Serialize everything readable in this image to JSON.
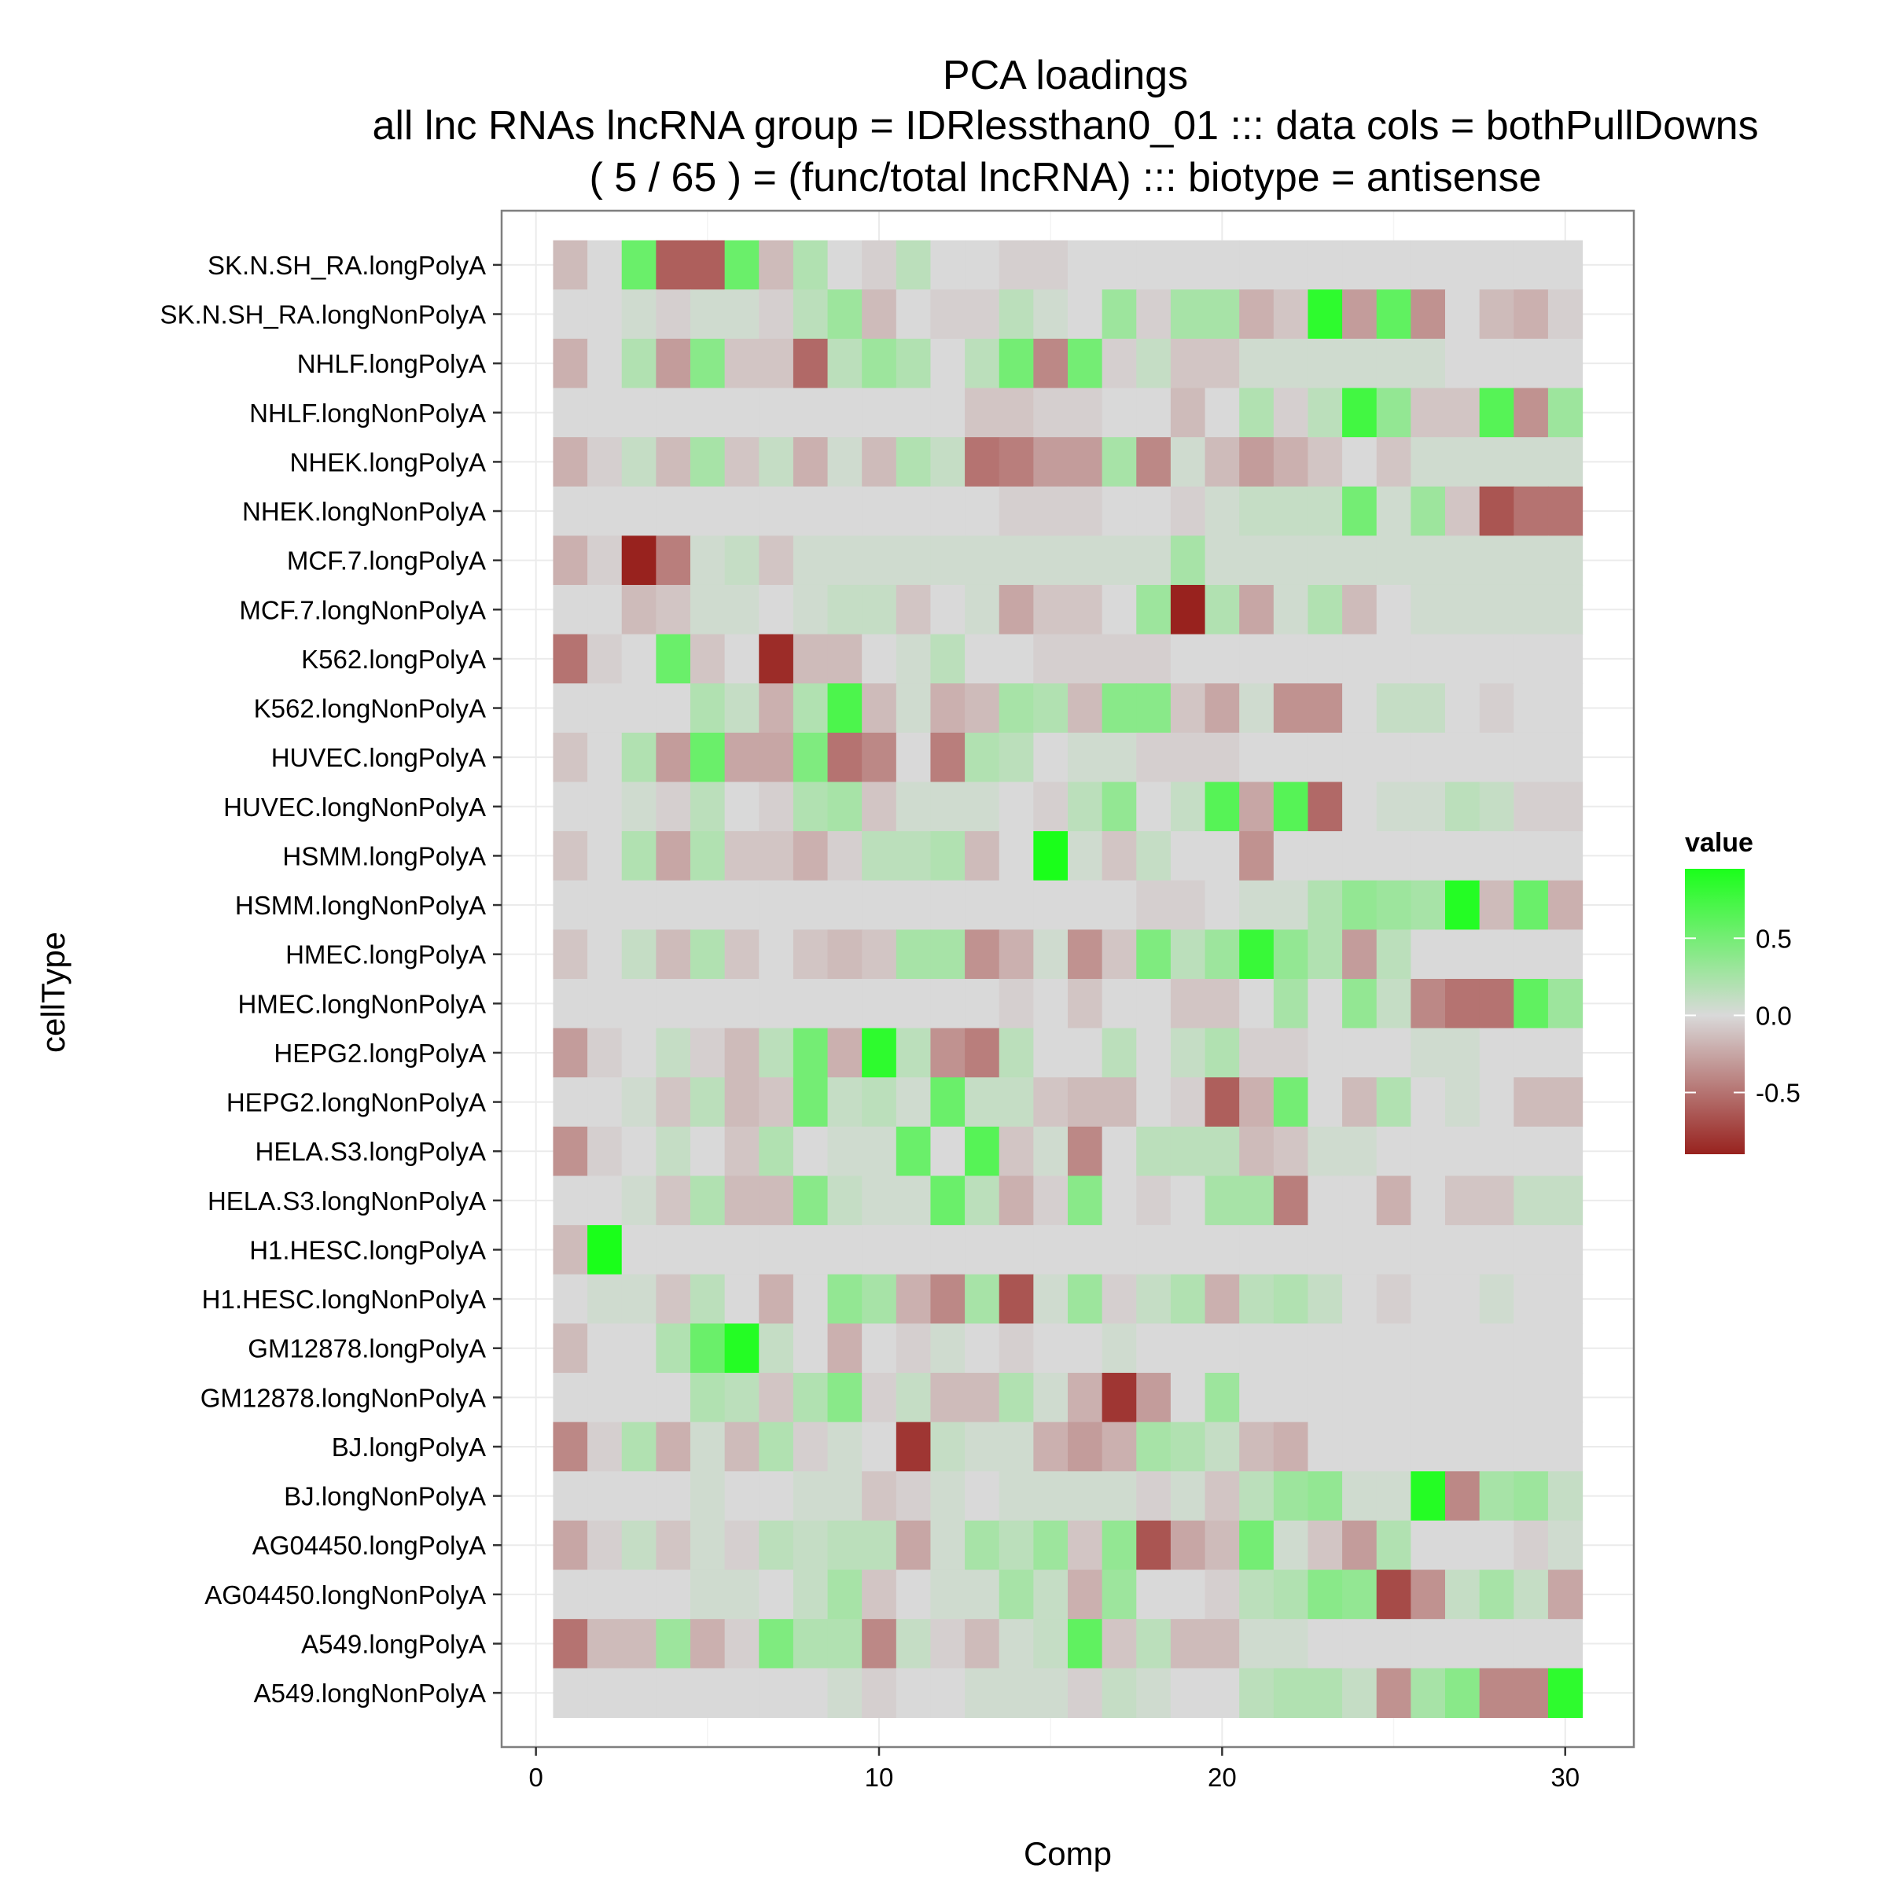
{
  "chart_data": {
    "type": "heatmap",
    "title": "PCA loadings",
    "subtitle_lines": [
      "all lnc RNAs lncRNA group = IDRlessthan0_01 ::: data cols = bothPullDowns",
      "( 5 / 65 ) = (func/total lncRNA) ::: biotype = antisense"
    ],
    "xlabel": "Comp",
    "ylabel": "cellType",
    "xlim": [
      -1,
      32
    ],
    "x_ticks": [
      0,
      10,
      20,
      30
    ],
    "x_values": [
      1,
      2,
      3,
      4,
      5,
      6,
      7,
      8,
      9,
      10,
      11,
      12,
      13,
      14,
      15,
      16,
      17,
      18,
      19,
      20,
      21,
      22,
      23,
      24,
      25,
      26,
      27,
      28,
      29,
      30
    ],
    "rows": [
      "SK.N.SH_RA.longPolyA",
      "SK.N.SH_RA.longNonPolyA",
      "NHLF.longPolyA",
      "NHLF.longNonPolyA",
      "NHEK.longPolyA",
      "NHEK.longNonPolyA",
      "MCF.7.longPolyA",
      "MCF.7.longNonPolyA",
      "K562.longPolyA",
      "K562.longNonPolyA",
      "HUVEC.longPolyA",
      "HUVEC.longNonPolyA",
      "HSMM.longPolyA",
      "HSMM.longNonPolyA",
      "HMEC.longPolyA",
      "HMEC.longNonPolyA",
      "HEPG2.longPolyA",
      "HEPG2.longNonPolyA",
      "HELA.S3.longPolyA",
      "HELA.S3.longNonPolyA",
      "H1.HESC.longPolyA",
      "H1.HESC.longNonPolyA",
      "GM12878.longPolyA",
      "GM12878.longNonPolyA",
      "BJ.longPolyA",
      "BJ.longNonPolyA",
      "AG04450.longPolyA",
      "AG04450.longNonPolyA",
      "A549.longPolyA",
      "A549.longNonPolyA"
    ],
    "values": [
      [
        -0.15,
        0,
        0.55,
        -0.6,
        -0.6,
        0.55,
        -0.15,
        0.2,
        0,
        -0.05,
        0.15,
        0,
        0,
        -0.05,
        -0.05,
        0,
        0,
        0,
        0,
        0,
        0,
        0,
        0,
        0,
        0,
        0,
        0,
        0,
        0,
        0
      ],
      [
        0,
        0,
        0.05,
        -0.05,
        0.05,
        0.05,
        -0.05,
        0.15,
        0.3,
        -0.15,
        0,
        -0.05,
        -0.05,
        0.15,
        0.05,
        0,
        0.3,
        -0.05,
        0.25,
        0.25,
        -0.2,
        -0.1,
        0.85,
        -0.3,
        0.6,
        -0.35,
        0,
        -0.15,
        -0.2,
        -0.05
      ],
      [
        -0.2,
        0,
        0.2,
        -0.3,
        0.4,
        -0.1,
        -0.1,
        -0.55,
        0.15,
        0.3,
        0.2,
        0,
        0.15,
        0.5,
        -0.4,
        0.5,
        -0.05,
        0.1,
        -0.1,
        -0.1,
        0.05,
        0.05,
        0.05,
        0.05,
        0.05,
        0.05,
        0,
        0,
        0,
        0
      ],
      [
        0,
        0,
        0,
        0,
        0,
        0,
        0,
        0,
        0,
        0,
        0,
        0,
        -0.1,
        -0.1,
        -0.05,
        -0.05,
        0,
        0,
        -0.15,
        0,
        0.2,
        -0.05,
        0.15,
        0.75,
        0.35,
        -0.1,
        -0.1,
        0.65,
        -0.35,
        0.3
      ],
      [
        -0.2,
        -0.05,
        0.1,
        -0.15,
        0.25,
        -0.1,
        0.1,
        -0.2,
        0.05,
        -0.15,
        0.2,
        0.1,
        -0.5,
        -0.45,
        -0.3,
        -0.3,
        0.25,
        -0.4,
        0.05,
        -0.15,
        -0.3,
        -0.2,
        -0.1,
        0,
        -0.1,
        0.05,
        0.05,
        0.05,
        0.05,
        0.05
      ],
      [
        0,
        0,
        0,
        0,
        0,
        0,
        0,
        0,
        0,
        0,
        0,
        0,
        0,
        -0.05,
        -0.05,
        -0.05,
        0,
        0,
        -0.05,
        0.05,
        0.1,
        0.1,
        0.1,
        0.5,
        0.05,
        0.3,
        -0.1,
        -0.65,
        -0.5,
        -0.5
      ],
      [
        -0.2,
        -0.05,
        -0.9,
        -0.45,
        0.05,
        0.1,
        -0.1,
        0.05,
        0.05,
        0.05,
        0.05,
        0.05,
        0.05,
        0.05,
        0.05,
        0.05,
        0.05,
        0.05,
        0.25,
        0.05,
        0.05,
        0.05,
        0.05,
        0.05,
        0.05,
        0.05,
        0.05,
        0.05,
        0.05,
        0.05
      ],
      [
        0,
        0,
        -0.15,
        -0.1,
        0.05,
        0.05,
        0,
        0.05,
        0.1,
        0.1,
        -0.1,
        0,
        0.05,
        -0.25,
        -0.1,
        -0.1,
        0,
        0.3,
        -0.9,
        0.2,
        -0.25,
        0.05,
        0.2,
        -0.15,
        0,
        0.05,
        0.05,
        0.05,
        0.05,
        0.05
      ],
      [
        -0.5,
        -0.05,
        0,
        0.55,
        -0.1,
        0,
        -0.85,
        -0.15,
        -0.15,
        0,
        0.05,
        0.15,
        0,
        0,
        -0.05,
        -0.05,
        -0.05,
        -0.05,
        0,
        0,
        0,
        0,
        0,
        0,
        0,
        0,
        0,
        0,
        0,
        0
      ],
      [
        0,
        0,
        0,
        0,
        0.2,
        0.1,
        -0.2,
        0.2,
        0.7,
        -0.15,
        0.05,
        -0.2,
        -0.15,
        0.25,
        0.2,
        -0.15,
        0.4,
        0.4,
        -0.1,
        -0.25,
        0.05,
        -0.35,
        -0.35,
        0,
        0.1,
        0.1,
        0,
        -0.05,
        0,
        0
      ],
      [
        -0.1,
        0,
        0.2,
        -0.3,
        0.55,
        -0.25,
        -0.25,
        0.45,
        -0.5,
        -0.4,
        0,
        -0.45,
        0.2,
        0.15,
        0,
        0.05,
        0.05,
        -0.05,
        -0.05,
        -0.05,
        0,
        0,
        0,
        0,
        0,
        0,
        0,
        0,
        0,
        0
      ],
      [
        0,
        0,
        0.05,
        -0.05,
        0.15,
        0,
        -0.05,
        0.2,
        0.25,
        -0.1,
        0.05,
        0.05,
        0.05,
        0,
        -0.05,
        0.15,
        0.35,
        0,
        0.1,
        0.65,
        -0.25,
        0.65,
        -0.55,
        0,
        0.05,
        0.05,
        0.15,
        0.1,
        -0.05,
        -0.05
      ],
      [
        -0.1,
        0,
        0.2,
        -0.25,
        0.2,
        -0.1,
        -0.1,
        -0.2,
        -0.05,
        0.15,
        0.15,
        0.2,
        -0.15,
        0,
        0.95,
        0.05,
        -0.1,
        0.1,
        0,
        0,
        -0.35,
        0,
        0,
        0,
        0,
        0,
        0,
        0,
        0,
        0
      ],
      [
        0,
        0,
        0,
        0,
        0,
        0,
        0,
        0,
        0,
        0,
        0,
        0,
        0,
        0,
        0,
        0,
        0,
        -0.05,
        -0.05,
        0,
        0.05,
        0.05,
        0.2,
        0.35,
        0.3,
        0.25,
        0.9,
        -0.15,
        0.55,
        -0.2
      ],
      [
        -0.1,
        0,
        0.1,
        -0.15,
        0.2,
        -0.1,
        0,
        -0.1,
        -0.15,
        -0.1,
        0.25,
        0.25,
        -0.35,
        -0.2,
        0.05,
        -0.35,
        -0.1,
        0.45,
        0.15,
        0.3,
        0.8,
        0.35,
        0.2,
        -0.3,
        0.15,
        0,
        0,
        0,
        0,
        0
      ],
      [
        0,
        0,
        0,
        0,
        0,
        0,
        0,
        0,
        0,
        0,
        0,
        0,
        0,
        -0.05,
        0,
        -0.1,
        0,
        0,
        -0.1,
        -0.1,
        0,
        0.25,
        0,
        0.35,
        0.1,
        -0.4,
        -0.5,
        -0.5,
        0.6,
        0.3
      ],
      [
        -0.3,
        -0.05,
        0,
        0.1,
        -0.05,
        -0.15,
        0.15,
        0.5,
        -0.2,
        0.85,
        0.15,
        -0.35,
        -0.45,
        0.15,
        0,
        0,
        0.15,
        0,
        0.1,
        0.2,
        -0.05,
        -0.05,
        0,
        0,
        0,
        0.05,
        0.05,
        0,
        0,
        0
      ],
      [
        0,
        0,
        0.05,
        -0.1,
        0.15,
        -0.15,
        -0.1,
        0.5,
        0.1,
        0.15,
        0.05,
        0.55,
        0.1,
        0.1,
        -0.1,
        -0.15,
        -0.15,
        0,
        -0.05,
        -0.6,
        -0.2,
        0.5,
        0,
        -0.15,
        0.2,
        0,
        0.05,
        0,
        -0.15,
        -0.15
      ],
      [
        -0.35,
        -0.05,
        0,
        0.1,
        0,
        -0.1,
        0.2,
        0,
        0.05,
        0.05,
        0.55,
        0,
        0.65,
        -0.1,
        0.05,
        -0.4,
        0,
        0.15,
        0.15,
        0.15,
        -0.15,
        -0.1,
        0.05,
        0.05,
        0,
        0,
        0,
        0,
        0,
        0
      ],
      [
        0,
        0,
        0.05,
        -0.1,
        0.2,
        -0.15,
        -0.15,
        0.4,
        0.1,
        0.05,
        0.05,
        0.55,
        0.15,
        -0.2,
        -0.05,
        0.4,
        0,
        -0.05,
        0,
        0.25,
        0.25,
        -0.45,
        0,
        0,
        -0.2,
        0,
        -0.1,
        -0.1,
        0.1,
        0.1
      ],
      [
        -0.15,
        0.95,
        0,
        0,
        0,
        0,
        0,
        0,
        0,
        0,
        0,
        0,
        0,
        0,
        0,
        0,
        0,
        0,
        0,
        0,
        0,
        0,
        0,
        0,
        0,
        0,
        0,
        0,
        0,
        0
      ],
      [
        0,
        0.05,
        0.05,
        -0.1,
        0.15,
        0,
        -0.2,
        0,
        0.35,
        0.25,
        -0.2,
        -0.4,
        0.25,
        -0.65,
        0.05,
        0.3,
        -0.05,
        0.1,
        0.2,
        -0.2,
        0.15,
        0.2,
        0.1,
        0,
        -0.05,
        0,
        0,
        0.05,
        0,
        0
      ],
      [
        -0.15,
        0,
        0,
        0.2,
        0.55,
        0.9,
        0.1,
        0,
        -0.2,
        0,
        -0.05,
        0.05,
        0,
        -0.05,
        0,
        0,
        0.05,
        0,
        0,
        0,
        0,
        0,
        0,
        0,
        0,
        0,
        0,
        0,
        0,
        0
      ],
      [
        0,
        0,
        0,
        0,
        0.2,
        0.15,
        -0.1,
        0.2,
        0.4,
        -0.05,
        0.1,
        -0.15,
        -0.15,
        0.2,
        0.05,
        -0.2,
        -0.8,
        -0.3,
        0,
        0.3,
        0,
        0,
        0,
        0,
        0,
        0,
        0,
        0,
        0,
        0
      ],
      [
        -0.4,
        -0.05,
        0.2,
        -0.2,
        0.05,
        -0.15,
        0.2,
        -0.05,
        0.05,
        0,
        -0.8,
        0.1,
        0.05,
        0.05,
        -0.2,
        -0.3,
        -0.2,
        0.25,
        0.2,
        0.1,
        -0.15,
        -0.2,
        0,
        0,
        0,
        0,
        0,
        0,
        0,
        0
      ],
      [
        0,
        0,
        0,
        0,
        0.05,
        0,
        0,
        0.05,
        0.05,
        -0.1,
        -0.05,
        0.05,
        0,
        0.05,
        0.05,
        0.05,
        0.05,
        -0.05,
        0.05,
        -0.1,
        0.15,
        0.3,
        0.35,
        0.05,
        0.05,
        0.9,
        -0.4,
        0.25,
        0.3,
        0.1
      ],
      [
        -0.25,
        -0.05,
        0.1,
        -0.1,
        0.05,
        -0.05,
        0.15,
        0.1,
        0.15,
        0.15,
        -0.25,
        0.05,
        0.25,
        0.15,
        0.3,
        -0.1,
        0.35,
        -0.65,
        -0.25,
        -0.15,
        0.5,
        0.05,
        -0.1,
        -0.3,
        0.2,
        0,
        0,
        0,
        -0.05,
        0.05
      ],
      [
        0,
        0,
        0,
        0,
        0.05,
        0.05,
        0,
        0.1,
        0.25,
        -0.1,
        0,
        0.05,
        0.05,
        0.25,
        0.1,
        -0.2,
        0.3,
        0,
        0,
        -0.05,
        0.15,
        0.2,
        0.4,
        0.35,
        -0.7,
        -0.35,
        0.1,
        0.25,
        0.1,
        -0.25
      ],
      [
        -0.5,
        -0.15,
        -0.15,
        0.3,
        -0.2,
        -0.05,
        0.45,
        0.2,
        0.2,
        -0.4,
        0.1,
        -0.05,
        -0.15,
        0.05,
        0.1,
        0.6,
        -0.1,
        0.15,
        -0.15,
        -0.15,
        0.05,
        0.05,
        0,
        0,
        0,
        0,
        0,
        0,
        0,
        0
      ],
      [
        0,
        0,
        0,
        0,
        0,
        0,
        0,
        0,
        0.05,
        -0.05,
        0,
        0,
        0.05,
        0.05,
        0.05,
        -0.05,
        0.1,
        0.05,
        0,
        0,
        0.15,
        0.2,
        0.2,
        0.1,
        -0.35,
        0.25,
        0.4,
        -0.4,
        -0.4,
        0.85
      ]
    ],
    "color_scale": {
      "low": "#98221e",
      "mid": "#d9d9d9",
      "high": "#1aff1a",
      "range": [
        -0.9,
        0.95
      ]
    },
    "legend": {
      "title": "value",
      "ticks": [
        0.5,
        0.0,
        -0.5
      ],
      "tick_labels": [
        "0.5",
        "0.0",
        "-0.5"
      ],
      "placement": "right"
    },
    "grid": true,
    "panel_background": "#ffffff",
    "grid_color": "#ebebeb",
    "border_color": "#7f7f7f"
  }
}
